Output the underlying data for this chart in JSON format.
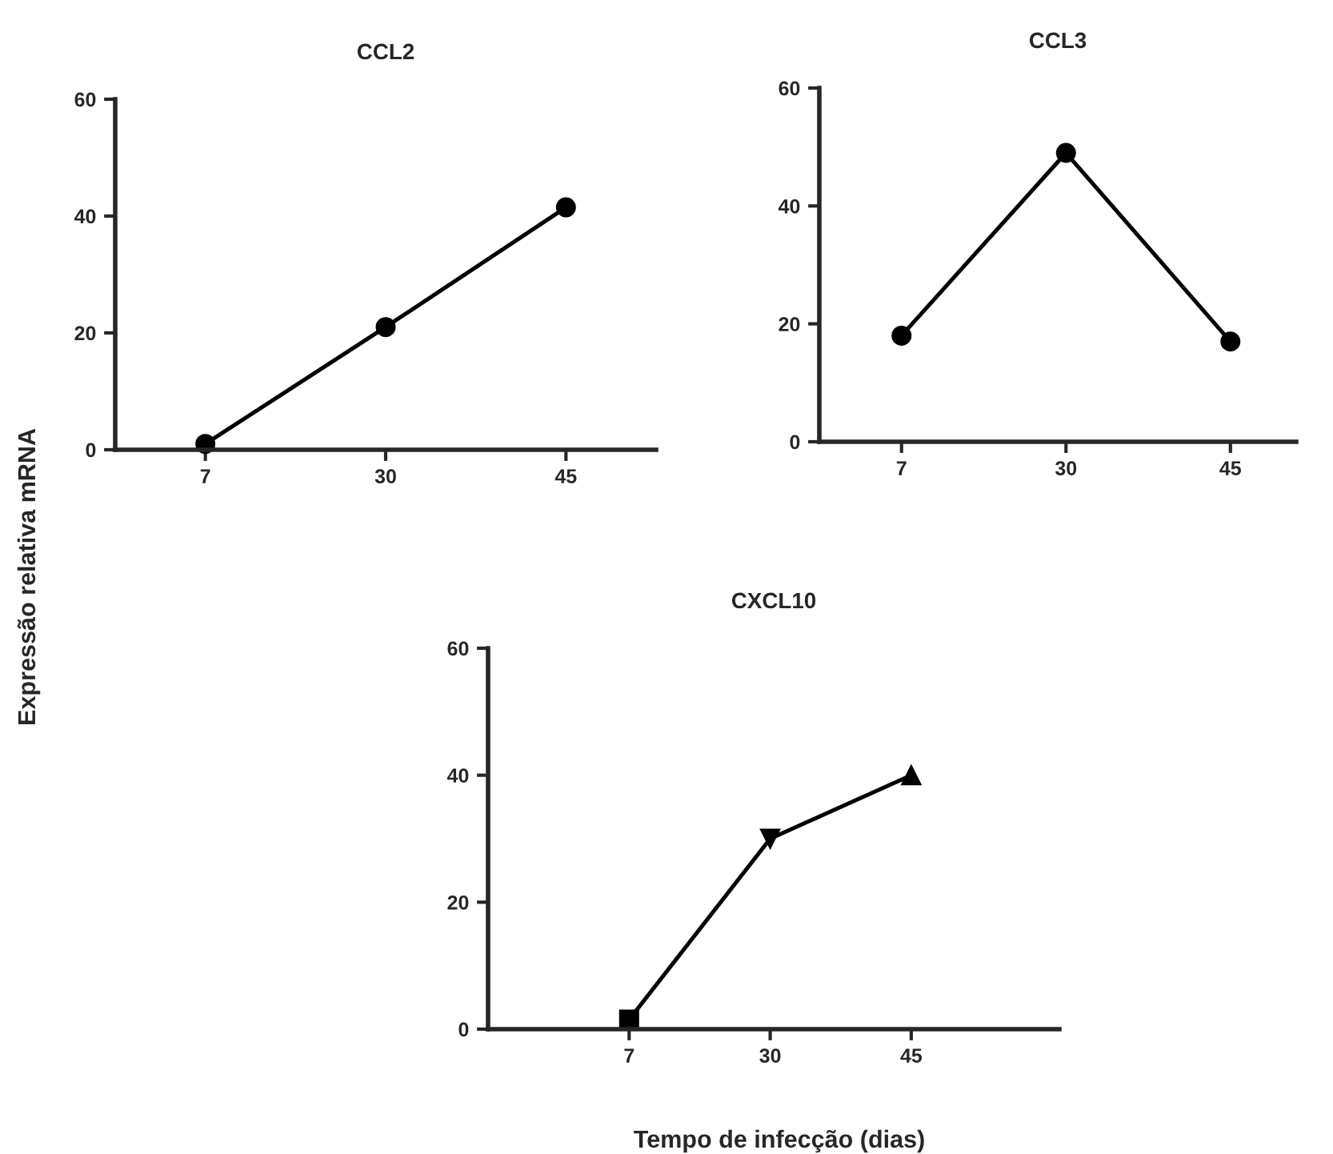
{
  "chart_data": [
    {
      "type": "line",
      "title": "CCL2",
      "ylabel": "Expressão relativa mRNA",
      "categories": [
        "7",
        "30",
        "45"
      ],
      "series": [
        {
          "color": "#000000",
          "values": [
            1,
            21,
            41.5
          ],
          "marker": "circle"
        }
      ],
      "ylim": [
        0,
        60
      ],
      "yticks": [
        0,
        20,
        40,
        60
      ],
      "grid": false,
      "legend": false,
      "line_style": "solid"
    },
    {
      "type": "line",
      "title": "CCL3",
      "categories": [
        "7",
        "30",
        "45"
      ],
      "series": [
        {
          "color": "#000000",
          "values": [
            18,
            49,
            17
          ],
          "marker": "circle"
        }
      ],
      "ylim": [
        0,
        60
      ],
      "yticks": [
        0,
        20,
        40,
        60
      ],
      "grid": false,
      "legend": false,
      "line_style": "solid"
    },
    {
      "type": "line",
      "title": "CXCL10",
      "xlabel": "Tempo de infecção (dias)",
      "categories": [
        "7",
        "30",
        "45"
      ],
      "series": [
        {
          "color": "#000000",
          "values": [
            1.5,
            30,
            40
          ],
          "marker": [
            "square",
            "triangle_down",
            "triangle"
          ]
        }
      ],
      "ylim": [
        0,
        60
      ],
      "yticks": [
        0,
        20,
        40,
        60
      ],
      "grid": false,
      "legend": false,
      "line_style": "solid"
    }
  ]
}
